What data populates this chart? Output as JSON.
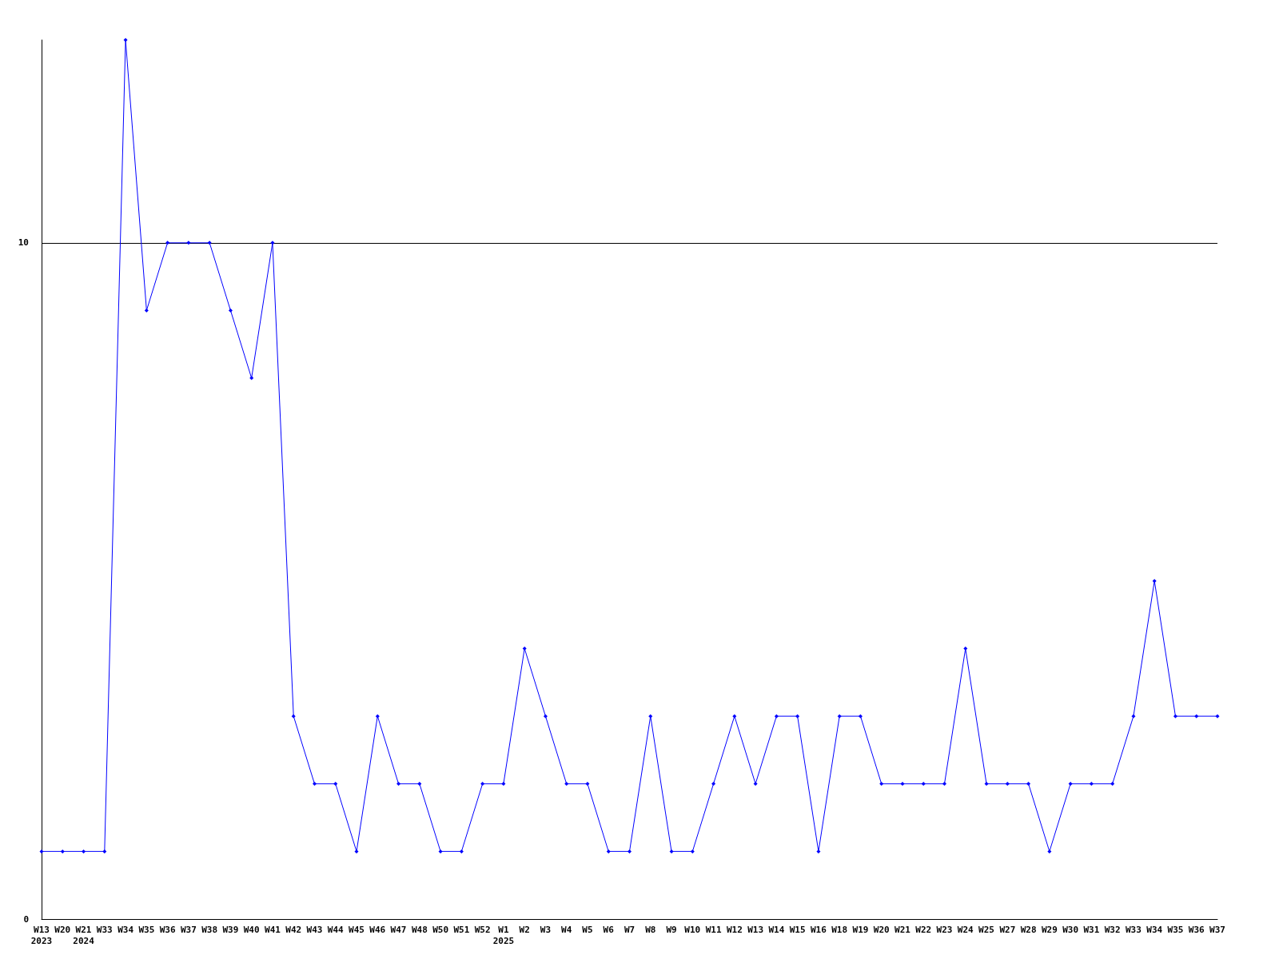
{
  "chart_data": {
    "type": "line",
    "categories": [
      "W13\n2023",
      "W20",
      "W21\n2024",
      "W33",
      "W34",
      "W35",
      "W36",
      "W37",
      "W38",
      "W39",
      "W40",
      "W41",
      "W42",
      "W43",
      "W44",
      "W45",
      "W46",
      "W47",
      "W48",
      "W50",
      "W51",
      "W52",
      "W1\n2025",
      "W2",
      "W3",
      "W4",
      "W5",
      "W6",
      "W7",
      "W8",
      "W9",
      "W10",
      "W11",
      "W12",
      "W13",
      "W14",
      "W15",
      "W16",
      "W18",
      "W19",
      "W20",
      "W21",
      "W22",
      "W23",
      "W24",
      "W25",
      "W27",
      "W28",
      "W29",
      "W30",
      "W31",
      "W32",
      "W33",
      "W34",
      "W35",
      "W36",
      "W37"
    ],
    "series": [
      {
        "color": "#0000ff",
        "values": [
          1,
          1,
          1,
          1,
          13,
          9,
          10,
          10,
          10,
          9,
          8,
          10,
          3,
          2,
          2,
          1,
          3,
          2,
          2,
          1,
          1,
          2,
          2,
          4,
          3,
          2,
          2,
          1,
          1,
          3,
          1,
          1,
          2,
          3,
          2,
          3,
          3,
          1,
          3,
          3,
          2,
          2,
          2,
          2,
          4,
          2,
          2,
          2,
          1,
          2,
          2,
          2,
          3,
          5,
          3,
          3,
          3
        ]
      }
    ],
    "ylim": [
      0,
      13
    ],
    "yticks": [
      0,
      10
    ],
    "grid": "y",
    "marker": "diamond",
    "line_style": "solid"
  }
}
